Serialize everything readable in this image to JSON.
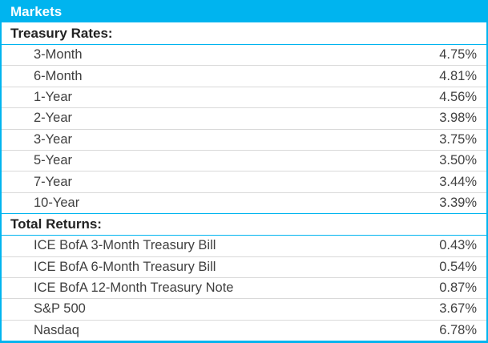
{
  "table": {
    "title": "Markets",
    "sections": [
      {
        "header": "Treasury Rates:",
        "rows": [
          {
            "label": "3-Month",
            "value": "4.75%"
          },
          {
            "label": "6-Month",
            "value": "4.81%"
          },
          {
            "label": "1-Year",
            "value": "4.56%"
          },
          {
            "label": "2-Year",
            "value": "3.98%"
          },
          {
            "label": "3-Year",
            "value": "3.75%"
          },
          {
            "label": "5-Year",
            "value": "3.50%"
          },
          {
            "label": "7-Year",
            "value": "3.44%"
          },
          {
            "label": "10-Year",
            "value": "3.39%"
          }
        ]
      },
      {
        "header": "Total Returns:",
        "rows": [
          {
            "label": "ICE BofA 3-Month Treasury Bill",
            "value": "0.43%"
          },
          {
            "label": "ICE BofA 6-Month Treasury Bill",
            "value": "0.54%"
          },
          {
            "label": "ICE BofA 12-Month Treasury Note",
            "value": "0.87%"
          },
          {
            "label": "S&P 500",
            "value": "3.67%"
          },
          {
            "label": "Nasdaq",
            "value": "6.78%"
          }
        ]
      }
    ]
  },
  "colors": {
    "accent": "#00b4ef",
    "divider": "#d9d9d9",
    "data_text": "#404040",
    "section_text": "#222222",
    "title_text": "#ffffff",
    "row_background": "#ffffff"
  }
}
